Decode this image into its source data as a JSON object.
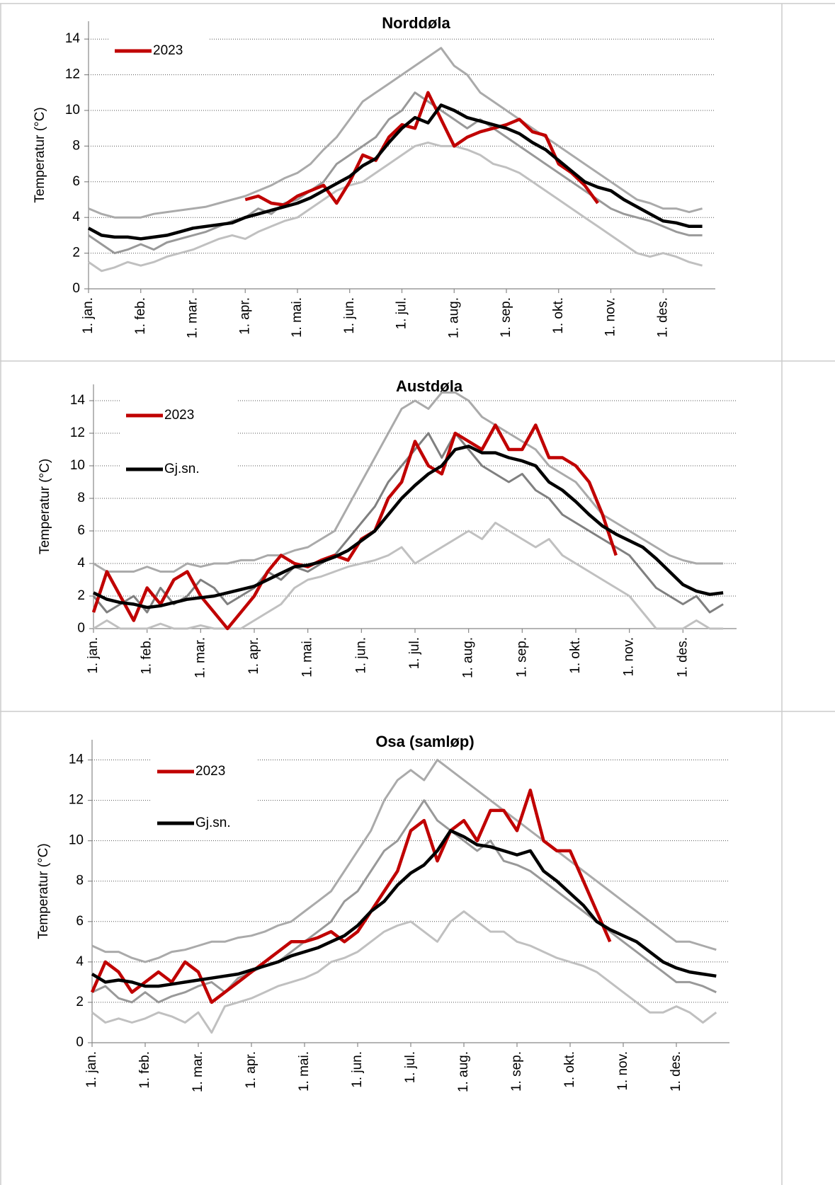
{
  "chart_data": [
    {
      "type": "line",
      "title": "Norddøla",
      "ylabel": "Temperatur (°C)",
      "ylim": [
        0,
        15
      ],
      "yticks": [
        0,
        2,
        4,
        6,
        8,
        10,
        12,
        14
      ],
      "grid": true,
      "legend": "upper left",
      "categories": [
        "1. jan.",
        null,
        null,
        null,
        "1. feb.",
        null,
        null,
        null,
        "1. mar.",
        null,
        null,
        null,
        "1. apr.",
        null,
        null,
        null,
        "1. mai.",
        null,
        null,
        null,
        "1. jun.",
        null,
        null,
        null,
        "1. jul.",
        null,
        null,
        null,
        "1. aug.",
        null,
        null,
        null,
        "1. sep.",
        null,
        null,
        null,
        "1. okt.",
        null,
        null,
        null,
        "1. nov.",
        null,
        null,
        null,
        "1. des.",
        null,
        null,
        null
      ],
      "series": [
        {
          "color": "#aaaaaa",
          "values": [
            4.5,
            4.2,
            4.0,
            4.0,
            4.0,
            4.2,
            4.3,
            4.4,
            4.5,
            4.6,
            4.8,
            5.0,
            5.2,
            5.5,
            5.8,
            6.2,
            6.5,
            7.0,
            7.8,
            8.5,
            9.5,
            10.5,
            11.0,
            11.5,
            12.0,
            12.5,
            13.0,
            13.5,
            12.5,
            12.0,
            11.0,
            10.5,
            10.0,
            9.5,
            9.0,
            8.5,
            8.0,
            7.5,
            7.0,
            6.5,
            6.0,
            5.5,
            5.0,
            4.8,
            4.5,
            4.5,
            4.3,
            4.5
          ]
        },
        {
          "color": "#c0c0c0",
          "values": [
            1.5,
            1.0,
            1.2,
            1.5,
            1.3,
            1.5,
            1.8,
            2.0,
            2.2,
            2.5,
            2.8,
            3.0,
            2.8,
            3.2,
            3.5,
            3.8,
            4.0,
            4.5,
            5.0,
            5.5,
            5.8,
            6.0,
            6.5,
            7.0,
            7.5,
            8.0,
            8.2,
            8.0,
            8.0,
            7.8,
            7.5,
            7.0,
            6.8,
            6.5,
            6.0,
            5.5,
            5.0,
            4.5,
            4.0,
            3.5,
            3.0,
            2.5,
            2.0,
            1.8,
            2.0,
            1.8,
            1.5,
            1.3
          ]
        },
        {
          "color": "#999999",
          "values": [
            3.0,
            2.5,
            2.0,
            2.2,
            2.5,
            2.2,
            2.6,
            2.8,
            3.0,
            3.2,
            3.5,
            3.8,
            4.0,
            4.5,
            4.2,
            4.8,
            5.0,
            5.5,
            6.0,
            7.0,
            7.5,
            8.0,
            8.5,
            9.5,
            10.0,
            11.0,
            10.5,
            10.0,
            9.5,
            9.0,
            9.5,
            9.0,
            8.5,
            8.0,
            7.5,
            7.0,
            6.5,
            6.0,
            5.5,
            5.0,
            4.5,
            4.2,
            4.0,
            3.8,
            3.5,
            3.2,
            3.0,
            3.0
          ]
        },
        {
          "name": "2023",
          "color": "#c00000",
          "values": [
            null,
            null,
            null,
            null,
            null,
            null,
            null,
            null,
            null,
            null,
            null,
            null,
            5.0,
            5.2,
            4.8,
            4.7,
            5.2,
            5.5,
            5.8,
            4.8,
            6.0,
            7.5,
            7.2,
            8.5,
            9.2,
            9.0,
            11.0,
            9.5,
            8.0,
            8.5,
            8.8,
            9.0,
            9.2,
            9.5,
            8.8,
            8.6,
            7.0,
            6.5,
            5.8,
            4.8,
            null,
            null,
            null,
            null,
            null,
            null,
            null,
            null
          ]
        },
        {
          "color": "#000000",
          "values": [
            3.4,
            3.0,
            2.9,
            2.9,
            2.8,
            2.9,
            3.0,
            3.2,
            3.4,
            3.5,
            3.6,
            3.7,
            4.0,
            4.2,
            4.4,
            4.6,
            4.8,
            5.1,
            5.5,
            5.9,
            6.3,
            6.9,
            7.3,
            8.2,
            9.0,
            9.6,
            9.3,
            10.3,
            10.0,
            9.6,
            9.4,
            9.2,
            9.0,
            8.7,
            8.2,
            7.8,
            7.2,
            6.6,
            6.0,
            5.7,
            5.5,
            5.0,
            4.6,
            4.2,
            3.8,
            3.7,
            3.5,
            3.5
          ]
        }
      ]
    },
    {
      "type": "line",
      "title": "Austdøla",
      "ylabel": "Temperatur (°C)",
      "ylim": [
        0,
        15
      ],
      "yticks": [
        0,
        2,
        4,
        6,
        8,
        10,
        12,
        14
      ],
      "grid": true,
      "legend": "upper left",
      "categories": [
        "1. jan.",
        null,
        null,
        null,
        "1. feb.",
        null,
        null,
        null,
        "1. mar.",
        null,
        null,
        null,
        "1. apr.",
        null,
        null,
        null,
        "1. mai.",
        null,
        null,
        null,
        "1. jun.",
        null,
        null,
        null,
        "1. jul.",
        null,
        null,
        null,
        "1. aug.",
        null,
        null,
        null,
        "1. sep.",
        null,
        null,
        null,
        "1. okt.",
        null,
        null,
        null,
        "1. nov.",
        null,
        null,
        null,
        "1. des.",
        null,
        null,
        null
      ],
      "series": [
        {
          "color": "#aaaaaa",
          "values": [
            4.0,
            3.5,
            3.5,
            3.5,
            3.8,
            3.5,
            3.5,
            4.0,
            3.8,
            4.0,
            4.0,
            4.2,
            4.2,
            4.5,
            4.5,
            4.8,
            5.0,
            5.5,
            6.0,
            7.5,
            9.0,
            10.5,
            12.0,
            13.5,
            14.0,
            13.5,
            14.5,
            14.5,
            14.0,
            13.0,
            12.5,
            12.0,
            11.5,
            11.0,
            10.0,
            9.5,
            9.0,
            8.0,
            7.0,
            6.5,
            6.0,
            5.5,
            5.0,
            4.5,
            4.2,
            4.0,
            4.0,
            4.0
          ]
        },
        {
          "color": "#c0c0c0",
          "values": [
            0.0,
            0.5,
            0.0,
            0.0,
            0.0,
            0.3,
            0.0,
            0.0,
            0.2,
            0.0,
            0.0,
            0.0,
            0.5,
            1.0,
            1.5,
            2.5,
            3.0,
            3.2,
            3.5,
            3.8,
            4.0,
            4.2,
            4.5,
            5.0,
            4.0,
            4.5,
            5.0,
            5.5,
            6.0,
            5.5,
            6.5,
            6.0,
            5.5,
            5.0,
            5.5,
            4.5,
            4.0,
            3.5,
            3.0,
            2.5,
            2.0,
            1.0,
            0.0,
            0.0,
            0.0,
            0.5,
            0.0,
            0.0
          ]
        },
        {
          "color": "#808080",
          "values": [
            2.0,
            1.0,
            1.5,
            2.0,
            1.0,
            2.5,
            1.5,
            2.0,
            3.0,
            2.5,
            1.5,
            2.0,
            2.5,
            3.5,
            3.0,
            3.8,
            3.5,
            4.0,
            4.5,
            5.5,
            6.5,
            7.5,
            9.0,
            10.0,
            11.0,
            12.0,
            10.5,
            12.0,
            11.0,
            10.0,
            9.5,
            9.0,
            9.5,
            8.5,
            8.0,
            7.0,
            6.5,
            6.0,
            5.5,
            5.0,
            4.5,
            3.5,
            2.5,
            2.0,
            1.5,
            2.0,
            1.0,
            1.5
          ]
        },
        {
          "name": "2023",
          "color": "#c00000",
          "values": [
            1.0,
            3.5,
            2.0,
            0.5,
            2.5,
            1.5,
            3.0,
            3.5,
            2.0,
            1.0,
            0.0,
            1.0,
            2.0,
            3.5,
            4.5,
            4.0,
            3.8,
            4.2,
            4.5,
            4.2,
            5.5,
            6.0,
            8.0,
            9.0,
            11.5,
            10.0,
            9.5,
            12.0,
            11.5,
            11.0,
            12.5,
            11.0,
            11.0,
            12.5,
            10.5,
            10.5,
            10.0,
            9.0,
            7.0,
            4.5,
            null,
            null,
            null,
            null,
            null,
            null,
            null,
            null
          ]
        },
        {
          "name": "Gj.sn.",
          "color": "#000000",
          "values": [
            2.2,
            1.8,
            1.6,
            1.5,
            1.3,
            1.4,
            1.6,
            1.8,
            1.9,
            2.0,
            2.2,
            2.4,
            2.6,
            3.0,
            3.4,
            3.8,
            3.9,
            4.1,
            4.4,
            4.8,
            5.4,
            6.0,
            7.0,
            8.0,
            8.8,
            9.5,
            10.0,
            11.0,
            11.2,
            10.8,
            10.8,
            10.5,
            10.3,
            10.0,
            9.0,
            8.5,
            7.8,
            7.0,
            6.3,
            5.8,
            5.4,
            5.0,
            4.3,
            3.5,
            2.7,
            2.3,
            2.1,
            2.2
          ]
        }
      ]
    },
    {
      "type": "line",
      "title": "Osa (samløp)",
      "ylabel": "Temperatur (°C)",
      "ylim": [
        0,
        15
      ],
      "yticks": [
        0,
        2,
        4,
        6,
        8,
        10,
        12,
        14
      ],
      "grid": true,
      "legend": "upper left",
      "categories": [
        "1. jan.",
        null,
        null,
        null,
        "1. feb.",
        null,
        null,
        null,
        "1. mar.",
        null,
        null,
        null,
        "1. apr.",
        null,
        null,
        null,
        "1. mai.",
        null,
        null,
        null,
        "1. jun.",
        null,
        null,
        null,
        "1. jul.",
        null,
        null,
        null,
        "1. aug.",
        null,
        null,
        null,
        "1. sep.",
        null,
        null,
        null,
        "1. okt.",
        null,
        null,
        null,
        "1. nov.",
        null,
        null,
        null,
        "1. des.",
        null,
        null,
        null
      ],
      "series": [
        {
          "color": "#aaaaaa",
          "values": [
            4.8,
            4.5,
            4.5,
            4.2,
            4.0,
            4.2,
            4.5,
            4.6,
            4.8,
            5.0,
            5.0,
            5.2,
            5.3,
            5.5,
            5.8,
            6.0,
            6.5,
            7.0,
            7.5,
            8.5,
            9.5,
            10.5,
            12.0,
            13.0,
            13.5,
            13.0,
            14.0,
            13.5,
            13.0,
            12.5,
            12.0,
            11.5,
            11.0,
            10.5,
            10.0,
            9.5,
            9.0,
            8.5,
            8.0,
            7.5,
            7.0,
            6.5,
            6.0,
            5.5,
            5.0,
            5.0,
            4.8,
            4.6
          ]
        },
        {
          "color": "#c0c0c0",
          "values": [
            1.5,
            1.0,
            1.2,
            1.0,
            1.2,
            1.5,
            1.3,
            1.0,
            1.5,
            0.5,
            1.8,
            2.0,
            2.2,
            2.5,
            2.8,
            3.0,
            3.2,
            3.5,
            4.0,
            4.2,
            4.5,
            5.0,
            5.5,
            5.8,
            6.0,
            5.5,
            5.0,
            6.0,
            6.5,
            6.0,
            5.5,
            5.5,
            5.0,
            4.8,
            4.5,
            4.2,
            4.0,
            3.8,
            3.5,
            3.0,
            2.5,
            2.0,
            1.5,
            1.5,
            1.8,
            1.5,
            1.0,
            1.5
          ]
        },
        {
          "color": "#999999",
          "values": [
            2.5,
            2.8,
            2.2,
            2.0,
            2.5,
            2.0,
            2.3,
            2.5,
            2.8,
            3.0,
            2.5,
            3.2,
            3.5,
            3.8,
            4.0,
            4.5,
            5.0,
            5.5,
            6.0,
            7.0,
            7.5,
            8.5,
            9.5,
            10.0,
            11.0,
            12.0,
            11.0,
            10.5,
            10.0,
            9.5,
            10.0,
            9.0,
            8.8,
            8.5,
            8.0,
            7.5,
            7.0,
            6.5,
            6.0,
            5.5,
            5.0,
            4.5,
            4.0,
            3.5,
            3.0,
            3.0,
            2.8,
            2.5
          ]
        },
        {
          "name": "2023",
          "color": "#c00000",
          "values": [
            2.5,
            4.0,
            3.5,
            2.5,
            3.0,
            3.5,
            3.0,
            4.0,
            3.5,
            2.0,
            2.5,
            3.0,
            3.5,
            4.0,
            4.5,
            5.0,
            5.0,
            5.2,
            5.5,
            5.0,
            5.5,
            6.5,
            7.5,
            8.5,
            10.5,
            11.0,
            9.0,
            10.5,
            11.0,
            10.0,
            11.5,
            11.5,
            10.5,
            12.5,
            10.0,
            9.5,
            9.5,
            8.0,
            6.5,
            5.0,
            null,
            null,
            null,
            null,
            null,
            null,
            null,
            null
          ]
        },
        {
          "name": "Gj.sn.",
          "color": "#000000",
          "values": [
            3.4,
            3.0,
            3.1,
            3.0,
            2.8,
            2.8,
            2.9,
            3.0,
            3.1,
            3.2,
            3.3,
            3.4,
            3.6,
            3.8,
            4.0,
            4.3,
            4.5,
            4.7,
            5.0,
            5.3,
            5.8,
            6.5,
            7.0,
            7.8,
            8.4,
            8.8,
            9.5,
            10.5,
            10.2,
            9.8,
            9.7,
            9.5,
            9.3,
            9.5,
            8.5,
            8.0,
            7.4,
            6.8,
            6.0,
            5.6,
            5.3,
            5.0,
            4.5,
            4.0,
            3.7,
            3.5,
            3.4,
            3.3
          ]
        }
      ]
    }
  ]
}
